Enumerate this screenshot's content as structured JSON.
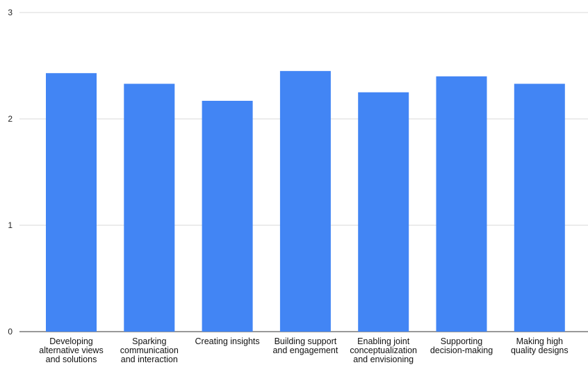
{
  "chart_data": {
    "type": "bar",
    "title": "",
    "xlabel": "",
    "ylabel": "",
    "ylim": [
      0,
      3
    ],
    "yticks": [
      "0",
      "1",
      "2",
      "3"
    ],
    "grid": true,
    "legend": "none",
    "bar_color": "#4285f4",
    "categories": [
      [
        "Developing",
        "alternative views",
        "and solutions"
      ],
      [
        "Sparking",
        "communication",
        "and interaction"
      ],
      [
        "Creating insights"
      ],
      [
        "Building support",
        "and engagement"
      ],
      [
        "Enabling joint",
        "conceptualization",
        "and envisioning"
      ],
      [
        "Supporting",
        "decision-making"
      ],
      [
        "Making high",
        "quality designs"
      ]
    ],
    "values": [
      2.43,
      2.33,
      2.17,
      2.45,
      2.25,
      2.4,
      2.33
    ]
  }
}
